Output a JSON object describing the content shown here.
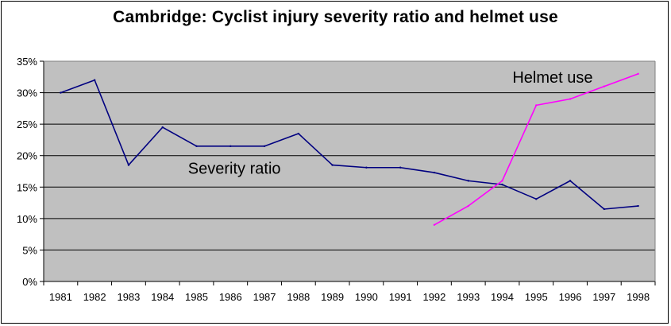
{
  "chart_data": {
    "type": "line",
    "title": "Cambridge: Cyclist injury severity ratio and helmet use",
    "xlabel": "",
    "ylabel": "",
    "categories": [
      "1981",
      "1982",
      "1983",
      "1984",
      "1985",
      "1986",
      "1987",
      "1988",
      "1989",
      "1990",
      "1991",
      "1992",
      "1993",
      "1994",
      "1995",
      "1996",
      "1997",
      "1998"
    ],
    "ylim": [
      0,
      0.35
    ],
    "yticks": [
      "0%",
      "5%",
      "10%",
      "15%",
      "20%",
      "25%",
      "30%",
      "35%"
    ],
    "grid": true,
    "legend": "none",
    "series": [
      {
        "name": "Severity ratio",
        "color": "#000080",
        "values": [
          0.3,
          0.32,
          0.185,
          0.245,
          0.215,
          0.215,
          0.215,
          0.235,
          0.185,
          0.181,
          0.181,
          0.173,
          0.16,
          0.154,
          0.131,
          0.16,
          0.115,
          0.12
        ]
      },
      {
        "name": "Helmet use",
        "color": "#ff00ff",
        "values": [
          null,
          null,
          null,
          null,
          null,
          null,
          null,
          null,
          null,
          null,
          null,
          0.09,
          0.12,
          0.16,
          0.28,
          0.29,
          0.31,
          0.33
        ]
      }
    ],
    "annotations": [
      {
        "text": "Helmet use",
        "series": 1
      },
      {
        "text": "Severity ratio",
        "series": 0
      }
    ],
    "colors": {
      "plot_background": "#c0c0c0",
      "gridline": "#000000"
    }
  }
}
